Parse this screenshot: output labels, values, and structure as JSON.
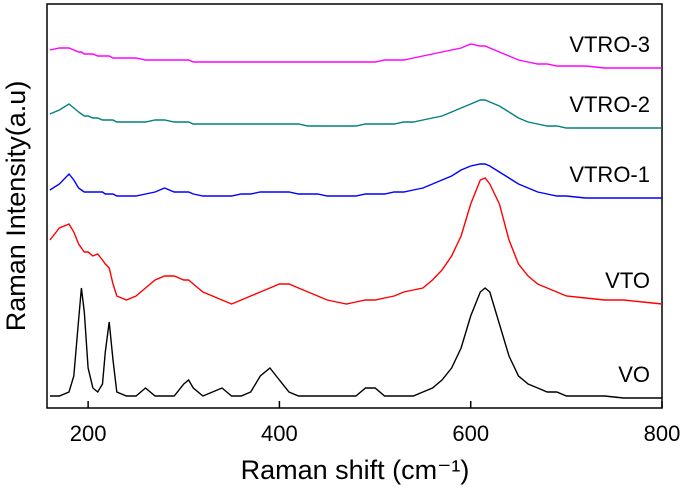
{
  "chart_data": {
    "type": "line",
    "x_label": "Raman shift (cm⁻¹)",
    "y_label": "Raman Intensity(a.u)",
    "xlim": [
      157,
      800
    ],
    "xticks": [
      200,
      400,
      600,
      800
    ],
    "ylim": [
      0,
      100
    ],
    "x": [
      160,
      170,
      180,
      185,
      190,
      193,
      196,
      200,
      205,
      210,
      215,
      218,
      222,
      226,
      230,
      240,
      250,
      260,
      270,
      280,
      290,
      300,
      305,
      310,
      320,
      330,
      340,
      350,
      360,
      370,
      380,
      390,
      400,
      410,
      420,
      430,
      440,
      450,
      460,
      470,
      480,
      490,
      500,
      510,
      520,
      530,
      540,
      550,
      560,
      570,
      580,
      590,
      600,
      610,
      615,
      620,
      630,
      640,
      650,
      660,
      670,
      680,
      690,
      700,
      720,
      740,
      760,
      780,
      800
    ],
    "series": [
      {
        "name": "VO",
        "color": "#000000",
        "values": [
          3,
          3,
          4,
          8,
          22,
          30,
          24,
          10,
          5,
          4,
          6,
          14,
          21.5,
          12,
          4,
          3,
          3,
          5,
          3,
          3,
          3,
          6,
          7,
          5,
          3,
          4,
          5,
          3,
          3,
          4,
          8,
          10,
          7,
          4,
          3,
          3,
          3,
          3,
          3,
          3,
          3,
          5,
          5,
          3,
          3,
          3,
          3,
          4,
          5,
          7,
          10,
          15,
          23,
          29,
          30,
          29,
          21,
          13,
          8,
          6,
          5,
          4,
          4,
          3,
          3,
          3,
          2.5,
          2.5,
          2.5
        ]
      },
      {
        "name": "VTO",
        "color": "#ff0000",
        "values": [
          42,
          45,
          46,
          44,
          41,
          40,
          39,
          39,
          38,
          38.5,
          37,
          36,
          35,
          31,
          28,
          27,
          28,
          30,
          32,
          33,
          33,
          32,
          32,
          31,
          29,
          28,
          27,
          26,
          27,
          28,
          29,
          30,
          31,
          31,
          30,
          29,
          28,
          27,
          26.5,
          26,
          26.5,
          27,
          27,
          27.5,
          28,
          29,
          29.5,
          30,
          32,
          34.5,
          38,
          43,
          51,
          57,
          57.5,
          56,
          51,
          42,
          36,
          33,
          31,
          30,
          29,
          28,
          27.5,
          27,
          27,
          26.5,
          26
        ]
      },
      {
        "name": "VTRO-1",
        "color": "#0000ff",
        "values": [
          54.5,
          56,
          58.5,
          57,
          55,
          54.5,
          54,
          54,
          54,
          54,
          54,
          53.5,
          53.5,
          53.5,
          53,
          53,
          53,
          53.5,
          54,
          55,
          54,
          54,
          54,
          53.5,
          53,
          53,
          53,
          53,
          53.5,
          53.5,
          54,
          54,
          54,
          54,
          53.5,
          53.5,
          53.5,
          53,
          53,
          53,
          53,
          53.5,
          53.5,
          53.5,
          54,
          54,
          54.5,
          55,
          56,
          57,
          58,
          59.5,
          60.5,
          61,
          61,
          60.5,
          59,
          57.5,
          56,
          55,
          54,
          53.5,
          53,
          53,
          52.5,
          52.5,
          52.5,
          52.5,
          52.5
        ]
      },
      {
        "name": "VTRO-2",
        "color": "#008080",
        "values": [
          73.5,
          74.5,
          76,
          75,
          74,
          73.5,
          73,
          73,
          72.5,
          72.5,
          72,
          72,
          72,
          72,
          71.5,
          71.5,
          71.5,
          71.5,
          72,
          72,
          71.5,
          71.5,
          71.5,
          71,
          71,
          71,
          71,
          71,
          71,
          71,
          71,
          71,
          71,
          71,
          71,
          70.5,
          70.5,
          70.5,
          70.5,
          70.5,
          70.5,
          71,
          71,
          71,
          71,
          71.5,
          71.5,
          72,
          72.5,
          73,
          74,
          75,
          76,
          77,
          77,
          76.5,
          75.5,
          74,
          72.5,
          71.5,
          71,
          70.5,
          70.5,
          70,
          70,
          70,
          70,
          70,
          70
        ]
      },
      {
        "name": "VTRO-3",
        "color": "#ff00ff",
        "values": [
          89.5,
          90,
          90,
          89.5,
          89,
          89,
          88.5,
          88.5,
          88.5,
          88,
          88,
          88,
          88,
          87.5,
          87.5,
          87.5,
          87.5,
          87,
          87,
          87,
          87,
          87,
          87,
          86.5,
          86.5,
          86.5,
          86.5,
          86.5,
          86.5,
          86.5,
          86.5,
          86.5,
          86.5,
          86.5,
          86.5,
          86.5,
          86.5,
          86.5,
          86.5,
          86.5,
          86.5,
          86.5,
          86.5,
          87,
          87,
          87,
          87.5,
          88,
          88.5,
          89,
          89.5,
          90,
          91,
          90.5,
          90.5,
          90,
          89,
          88,
          87,
          86.5,
          86,
          86,
          85.5,
          85.5,
          85.5,
          85,
          85,
          85,
          85
        ]
      }
    ]
  }
}
